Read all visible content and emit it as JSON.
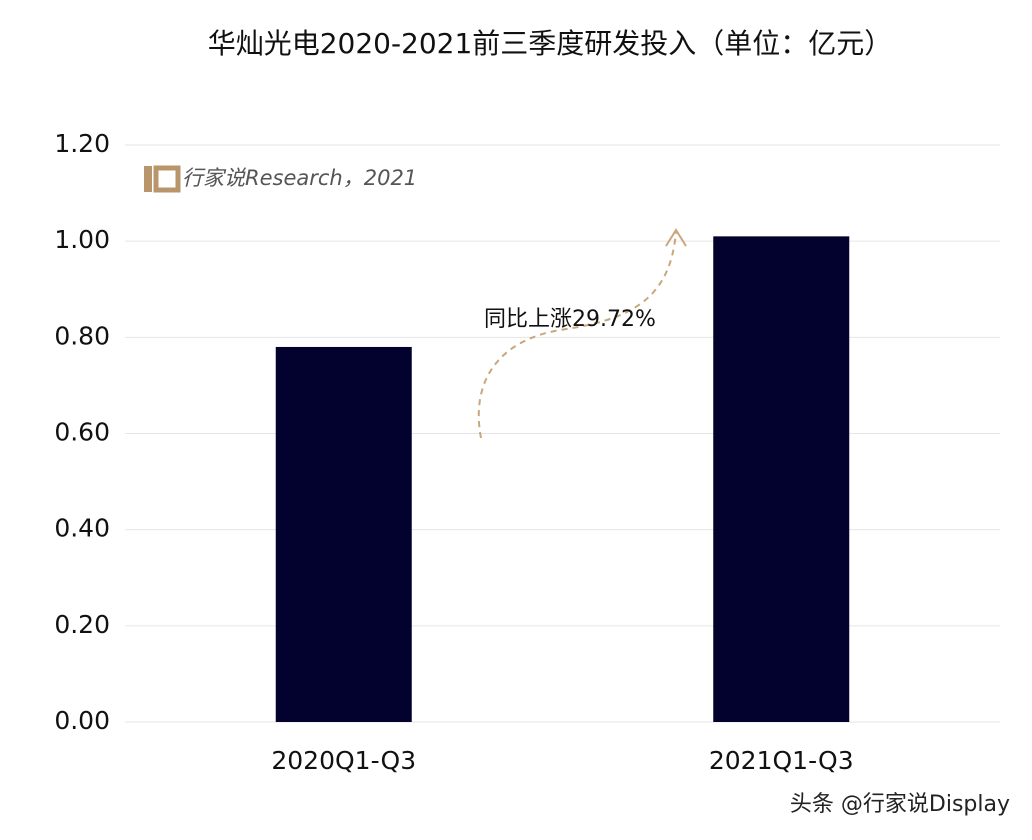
{
  "chart_data": {
    "type": "bar",
    "title": "华灿光电2020-2021前三季度研发投入（单位：亿元）",
    "categories": [
      "2020Q1-Q3",
      "2021Q1-Q3"
    ],
    "values": [
      0.78,
      1.01
    ],
    "color": "#03012e",
    "ylim": [
      0,
      1.2
    ],
    "yticks": [
      {
        "value": 0,
        "label": "0.00"
      },
      {
        "value": 0.2,
        "label": "0.20"
      },
      {
        "value": 0.4,
        "label": "0.40"
      },
      {
        "value": 0.6,
        "label": "0.60"
      },
      {
        "value": 0.8,
        "label": "0.80"
      },
      {
        "value": 1.0,
        "label": "1.00"
      },
      {
        "value": 1.2,
        "label": "1.20"
      }
    ],
    "grid": true,
    "annotation": "同比上涨29.72%",
    "watermark": "行家说Research，2021",
    "source": "头条 @行家说Display"
  }
}
